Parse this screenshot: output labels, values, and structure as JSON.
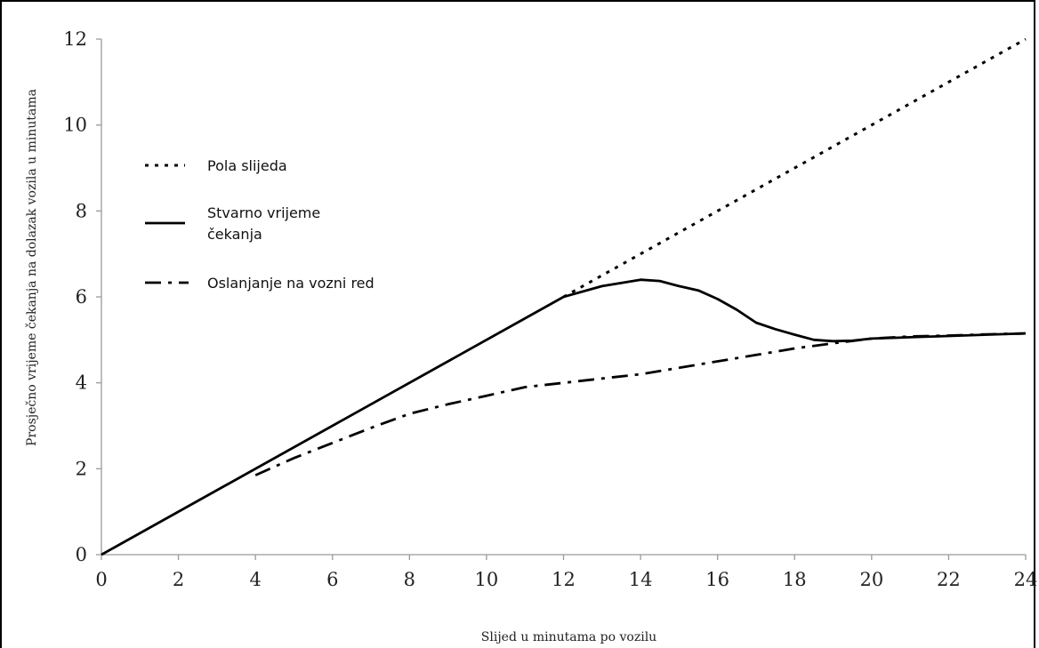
{
  "chart_data": {
    "type": "line",
    "xlabel": "Slijed u minutama po vozilu",
    "ylabel": "Prosječno vrijeme čekanja na dolazak vozila u minutama",
    "xlim": [
      0,
      24
    ],
    "ylim": [
      0,
      12
    ],
    "xticks": [
      0,
      2,
      4,
      6,
      8,
      10,
      12,
      14,
      16,
      18,
      20,
      22,
      24
    ],
    "yticks": [
      0,
      2,
      4,
      6,
      8,
      10,
      12
    ],
    "grid": false,
    "legend_position": "upper-left",
    "series": [
      {
        "name": "Pola slijeda",
        "line_style": "dotted",
        "color": "#000000",
        "x": [
          12,
          24
        ],
        "y": [
          6,
          12
        ]
      },
      {
        "name": "Stvarno vrijeme čekanja",
        "legend_lines": [
          "Stvarno vrijeme",
          "čekanja"
        ],
        "line_style": "solid",
        "color": "#000000",
        "x": [
          0,
          12,
          13,
          14,
          14.5,
          15,
          15.5,
          16,
          16.5,
          17,
          17.5,
          18,
          18.5,
          19,
          19.5,
          20,
          21,
          22,
          23,
          24
        ],
        "y": [
          0,
          6,
          6.25,
          6.4,
          6.37,
          6.25,
          6.15,
          5.95,
          5.7,
          5.4,
          5.25,
          5.12,
          5.0,
          4.97,
          4.98,
          5.03,
          5.06,
          5.09,
          5.12,
          5.15
        ]
      },
      {
        "name": "Oslanjanje na vozni red",
        "line_style": "dashdot",
        "color": "#000000",
        "x": [
          4,
          5,
          6,
          7,
          8,
          9,
          10,
          11,
          12,
          13,
          14,
          15,
          16,
          17,
          18,
          19,
          20,
          21,
          22,
          23,
          24
        ],
        "y": [
          1.85,
          2.25,
          2.6,
          2.95,
          3.28,
          3.5,
          3.7,
          3.9,
          4.0,
          4.1,
          4.2,
          4.35,
          4.5,
          4.65,
          4.8,
          4.92,
          5.03,
          5.08,
          5.1,
          5.13,
          5.15
        ]
      }
    ]
  }
}
